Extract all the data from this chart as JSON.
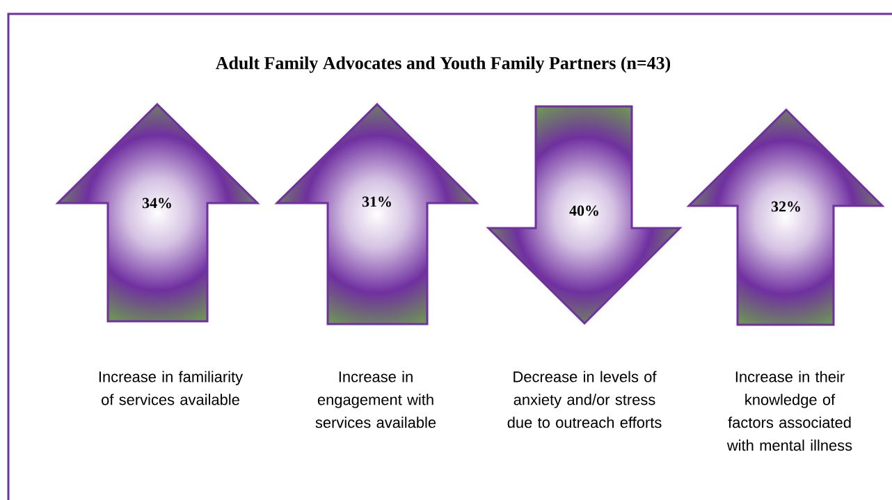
{
  "chart_data": {
    "type": "other",
    "title": "Adult Family Advocates and Youth Family Partners (n=43)",
    "categories": [
      "Increase in familiarity of services available",
      "Increase in engagement with services available",
      "Decrease in levels of anxiety and/or stress due to outreach efforts",
      "Increase in their knowledge of factors associated with mental illness"
    ],
    "values": [
      34,
      31,
      40,
      32
    ],
    "value_labels": [
      "34%",
      "31%",
      "40%",
      "32%"
    ]
  }
}
